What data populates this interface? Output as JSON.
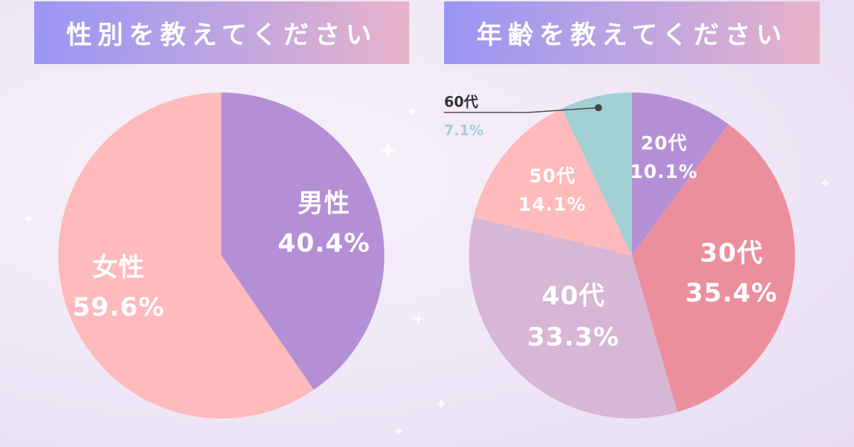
{
  "chart_data": [
    {
      "type": "pie",
      "title": "性別を教えてください",
      "slices": [
        {
          "name": "男性",
          "label": "40.4%",
          "value": 40.4,
          "color": "#b58fd6"
        },
        {
          "name": "女性",
          "label": "59.6%",
          "value": 59.6,
          "color": "#ffbabc"
        }
      ]
    },
    {
      "type": "pie",
      "title": "年齢を教えてください",
      "slices": [
        {
          "name": "20代",
          "label": "10.1%",
          "value": 10.1,
          "color": "#b58fd6"
        },
        {
          "name": "30代",
          "label": "35.4%",
          "value": 35.4,
          "color": "#ec8f9d"
        },
        {
          "name": "40代",
          "label": "33.3%",
          "value": 33.3,
          "color": "#d7b6d6"
        },
        {
          "name": "50代",
          "label": "14.1%",
          "value": 14.1,
          "color": "#ffbabc"
        },
        {
          "name": "60代",
          "label": "7.1%",
          "value": 7.1,
          "color": "#a1d0d5"
        }
      ]
    }
  ]
}
